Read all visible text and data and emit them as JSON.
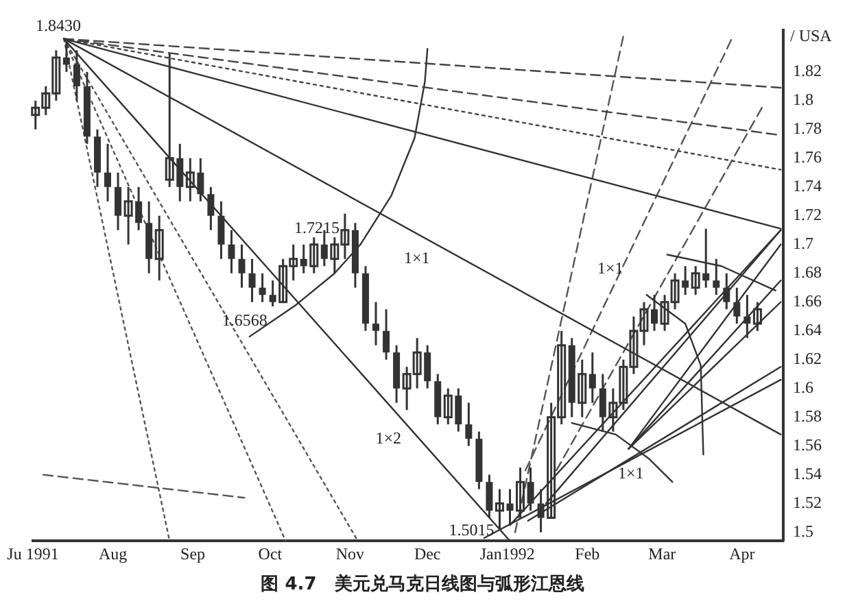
{
  "chart_data": {
    "type": "candlestick",
    "title": "图 4.7　美元兑马克日线图与弧形江恩线",
    "ylabel": "/ USA",
    "color": "#333333",
    "x": [
      "1991-07-02",
      "1991-07-06",
      "1991-07-10",
      "1991-07-14",
      "1991-07-18",
      "1991-07-22",
      "1991-07-26",
      "1991-07-30",
      "1991-08-03",
      "1991-08-07",
      "1991-08-11",
      "1991-08-15",
      "1991-08-19",
      "1991-08-23",
      "1991-08-27",
      "1991-08-31",
      "1991-09-04",
      "1991-09-08",
      "1991-09-12",
      "1991-09-16",
      "1991-09-20",
      "1991-09-24",
      "1991-09-28",
      "1991-10-02",
      "1991-10-06",
      "1991-10-10",
      "1991-10-14",
      "1991-10-18",
      "1991-10-22",
      "1991-10-26",
      "1991-10-30",
      "1991-11-03",
      "1991-11-07",
      "1991-11-11",
      "1991-11-15",
      "1991-11-19",
      "1991-11-23",
      "1991-11-27",
      "1991-12-01",
      "1991-12-05",
      "1991-12-09",
      "1991-12-13",
      "1991-12-17",
      "1991-12-21",
      "1991-12-25",
      "1991-12-29",
      "1992-01-02",
      "1992-01-06",
      "1992-01-10",
      "1992-01-14",
      "1992-01-18",
      "1992-01-22",
      "1992-01-26",
      "1992-01-30",
      "1992-02-03",
      "1992-02-07",
      "1992-02-11",
      "1992-02-15",
      "1992-02-19",
      "1992-02-23",
      "1992-02-27",
      "1992-03-02",
      "1992-03-06",
      "1992-03-10",
      "1992-03-14",
      "1992-03-18",
      "1992-03-22",
      "1992-03-26",
      "1992-03-30",
      "1992-04-03",
      "1992-04-07"
    ],
    "ohlc": [
      [
        1.79,
        1.8,
        1.78,
        1.795
      ],
      [
        1.795,
        1.81,
        1.79,
        1.805
      ],
      [
        1.805,
        1.835,
        1.8,
        1.83
      ],
      [
        1.83,
        1.843,
        1.82,
        1.825
      ],
      [
        1.825,
        1.835,
        1.8,
        1.81
      ],
      [
        1.81,
        1.82,
        1.77,
        1.775
      ],
      [
        1.775,
        1.78,
        1.74,
        1.75
      ],
      [
        1.75,
        1.77,
        1.73,
        1.74
      ],
      [
        1.74,
        1.75,
        1.71,
        1.72
      ],
      [
        1.72,
        1.74,
        1.7,
        1.73
      ],
      [
        1.73,
        1.74,
        1.71,
        1.715
      ],
      [
        1.715,
        1.73,
        1.68,
        1.69
      ],
      [
        1.69,
        1.72,
        1.675,
        1.71
      ],
      [
        1.745,
        1.833,
        1.74,
        1.76
      ],
      [
        1.76,
        1.77,
        1.73,
        1.74
      ],
      [
        1.74,
        1.76,
        1.73,
        1.75
      ],
      [
        1.75,
        1.76,
        1.73,
        1.735
      ],
      [
        1.735,
        1.74,
        1.71,
        1.72
      ],
      [
        1.72,
        1.73,
        1.69,
        1.7
      ],
      [
        1.7,
        1.71,
        1.68,
        1.69
      ],
      [
        1.69,
        1.7,
        1.67,
        1.68
      ],
      [
        1.68,
        1.69,
        1.66,
        1.67
      ],
      [
        1.67,
        1.68,
        1.66,
        1.665
      ],
      [
        1.665,
        1.675,
        1.657,
        1.66
      ],
      [
        1.66,
        1.69,
        1.66,
        1.685
      ],
      [
        1.685,
        1.7,
        1.675,
        1.69
      ],
      [
        1.69,
        1.7,
        1.68,
        1.685
      ],
      [
        1.685,
        1.705,
        1.68,
        1.7
      ],
      [
        1.7,
        1.71,
        1.685,
        1.69
      ],
      [
        1.69,
        1.705,
        1.68,
        1.7
      ],
      [
        1.7,
        1.7215,
        1.69,
        1.71
      ],
      [
        1.71,
        1.715,
        1.67,
        1.68
      ],
      [
        1.68,
        1.685,
        1.64,
        1.645
      ],
      [
        1.645,
        1.66,
        1.63,
        1.64
      ],
      [
        1.64,
        1.655,
        1.62,
        1.625
      ],
      [
        1.625,
        1.63,
        1.59,
        1.6
      ],
      [
        1.6,
        1.615,
        1.585,
        1.61
      ],
      [
        1.61,
        1.635,
        1.6,
        1.625
      ],
      [
        1.625,
        1.63,
        1.6,
        1.605
      ],
      [
        1.605,
        1.61,
        1.575,
        1.58
      ],
      [
        1.58,
        1.6,
        1.575,
        1.595
      ],
      [
        1.595,
        1.6,
        1.57,
        1.575
      ],
      [
        1.575,
        1.59,
        1.56,
        1.565
      ],
      [
        1.565,
        1.57,
        1.53,
        1.535
      ],
      [
        1.535,
        1.54,
        1.51,
        1.515
      ],
      [
        1.515,
        1.53,
        1.5015,
        1.52
      ],
      [
        1.52,
        1.53,
        1.505,
        1.515
      ],
      [
        1.515,
        1.545,
        1.51,
        1.535
      ],
      [
        1.535,
        1.545,
        1.515,
        1.52
      ],
      [
        1.52,
        1.53,
        1.5,
        1.51
      ],
      [
        1.51,
        1.59,
        1.51,
        1.58
      ],
      [
        1.58,
        1.64,
        1.575,
        1.63
      ],
      [
        1.63,
        1.635,
        1.58,
        1.59
      ],
      [
        1.59,
        1.62,
        1.58,
        1.61
      ],
      [
        1.61,
        1.625,
        1.59,
        1.6
      ],
      [
        1.6,
        1.61,
        1.57,
        1.58
      ],
      [
        1.58,
        1.6,
        1.57,
        1.59
      ],
      [
        1.59,
        1.62,
        1.585,
        1.615
      ],
      [
        1.615,
        1.65,
        1.61,
        1.64
      ],
      [
        1.64,
        1.66,
        1.63,
        1.655
      ],
      [
        1.655,
        1.665,
        1.64,
        1.645
      ],
      [
        1.645,
        1.665,
        1.64,
        1.66
      ],
      [
        1.66,
        1.68,
        1.655,
        1.675
      ],
      [
        1.675,
        1.685,
        1.665,
        1.67
      ],
      [
        1.67,
        1.685,
        1.665,
        1.68
      ],
      [
        1.68,
        1.711,
        1.67,
        1.675
      ],
      [
        1.675,
        1.69,
        1.665,
        1.67
      ],
      [
        1.67,
        1.68,
        1.655,
        1.66
      ],
      [
        1.66,
        1.67,
        1.645,
        1.65
      ],
      [
        1.65,
        1.665,
        1.635,
        1.645
      ],
      [
        1.645,
        1.66,
        1.64,
        1.655
      ]
    ],
    "series": [
      {
        "type": "line",
        "color": "#333333",
        "line_style": "solid",
        "x": [
          "1991-07-13",
          "1992-04-16"
        ],
        "values": [
          1.843,
          1.568
        ]
      },
      {
        "type": "line",
        "color": "#333333",
        "line_style": "solid",
        "x": [
          "1991-07-13",
          "1992-04-16"
        ],
        "values": [
          1.843,
          1.711
        ]
      },
      {
        "type": "line",
        "color": "#333333",
        "line_style": "solid",
        "x": [
          "1991-07-13",
          "1992-01-02"
        ],
        "values": [
          1.843,
          1.494
        ]
      },
      {
        "type": "line",
        "color": "#444444",
        "line_style": "dashed",
        "x": [
          "1991-07-13",
          "1992-04-16"
        ],
        "values": [
          1.843,
          1.809
        ]
      },
      {
        "type": "line",
        "color": "#444444",
        "line_style": "dashed",
        "x": [
          "1991-07-13",
          "1992-04-16"
        ],
        "values": [
          1.843,
          1.776
        ]
      },
      {
        "type": "line",
        "color": "#444444",
        "line_style": "dotted",
        "x": [
          "1991-07-13",
          "1992-04-16"
        ],
        "values": [
          1.843,
          1.752
        ]
      },
      {
        "type": "line",
        "color": "#555555",
        "line_style": "dotted",
        "x": [
          "1991-07-13",
          "1991-08-23"
        ],
        "values": [
          1.843,
          1.494
        ]
      },
      {
        "type": "line",
        "color": "#555555",
        "line_style": "dotted",
        "x": [
          "1991-07-13",
          "1991-10-07"
        ],
        "values": [
          1.843,
          1.494
        ]
      },
      {
        "type": "line",
        "color": "#555555",
        "line_style": "dotted",
        "x": [
          "1991-07-13",
          "1991-11-04"
        ],
        "values": [
          1.843,
          1.494
        ]
      },
      {
        "type": "line",
        "color": "#333333",
        "line_style": "solid",
        "x": [
          "1991-09-23",
          "1991-10-11",
          "1991-10-26",
          "1991-11-05",
          "1991-11-17",
          "1991-11-26",
          "1991-11-30",
          "1991-12-01"
        ],
        "values": [
          1.636,
          1.658,
          1.68,
          1.7,
          1.734,
          1.774,
          1.813,
          1.836
        ]
      },
      {
        "type": "line",
        "color": "#333333",
        "line_style": "solid",
        "x": [
          "1992-01-02",
          "1992-04-16"
        ],
        "values": [
          1.505,
          1.71
        ]
      },
      {
        "type": "line",
        "color": "#333333",
        "line_style": "solid",
        "x": [
          "1991-12-23",
          "1992-04-16"
        ],
        "values": [
          1.496,
          1.606
        ]
      },
      {
        "type": "line",
        "color": "#333333",
        "line_style": "solid",
        "x": [
          "1992-01-09",
          "1992-04-16"
        ],
        "values": [
          1.508,
          1.615
        ]
      },
      {
        "type": "line",
        "color": "#333333",
        "line_style": "solid",
        "x": [
          "1992-01-16",
          "1992-04-16"
        ],
        "values": [
          1.52,
          1.71
        ]
      },
      {
        "type": "line",
        "color": "#333333",
        "line_style": "solid",
        "x": [
          "1992-02-17",
          "1992-04-16"
        ],
        "values": [
          1.558,
          1.7
        ]
      },
      {
        "type": "line",
        "color": "#333333",
        "line_style": "solid",
        "x": [
          "1992-02-17",
          "1992-04-16"
        ],
        "values": [
          1.558,
          1.675
        ]
      },
      {
        "type": "line",
        "color": "#333333",
        "line_style": "solid",
        "x": [
          "1992-02-17",
          "1992-04-16"
        ],
        "values": [
          1.558,
          1.66
        ]
      },
      {
        "type": "line",
        "color": "#333333",
        "line_style": "solid",
        "x": [
          "1992-01-26",
          "1992-02-12",
          "1992-02-25",
          "1992-03-05"
        ],
        "values": [
          1.576,
          1.568,
          1.551,
          1.535
        ]
      },
      {
        "type": "line",
        "color": "#333333",
        "line_style": "solid",
        "x": [
          "1992-02-24",
          "1992-03-10",
          "1992-03-16",
          "1992-03-17"
        ],
        "values": [
          1.665,
          1.645,
          1.616,
          1.554
        ]
      },
      {
        "type": "line",
        "color": "#333333",
        "line_style": "solid",
        "x": [
          "1992-03-03",
          "1992-03-24",
          "1992-04-14"
        ],
        "values": [
          1.693,
          1.685,
          1.668
        ]
      },
      {
        "type": "line",
        "color": "#555555",
        "line_style": "dashed",
        "x": [
          "1992-01-04",
          "1992-02-15"
        ],
        "values": [
          1.5,
          1.845
        ]
      },
      {
        "type": "line",
        "color": "#555555",
        "line_style": "dashed",
        "x": [
          "1992-01-08",
          "1992-03-28"
        ],
        "values": [
          1.543,
          1.843
        ]
      },
      {
        "type": "line",
        "color": "#555555",
        "line_style": "dashed",
        "x": [
          "1992-01-20",
          "1992-04-09"
        ],
        "values": [
          1.543,
          1.796
        ]
      },
      {
        "type": "line",
        "color": "#555555",
        "line_style": "dashed",
        "x": [
          "1991-07-05",
          "1991-09-21"
        ],
        "values": [
          1.54,
          1.524
        ]
      }
    ],
    "marker": "none",
    "xlim": [
      "1991-07-01",
      "1992-04-17"
    ],
    "xticks": [
      {
        "value": "1991-07-01",
        "label": "Ju 1991"
      },
      {
        "value": "1991-08-01",
        "label": "Aug"
      },
      {
        "value": "1991-09-01",
        "label": "Sep"
      },
      {
        "value": "1991-10-01",
        "label": "Oct"
      },
      {
        "value": "1991-11-01",
        "label": "Nov"
      },
      {
        "value": "1991-12-01",
        "label": "Dec"
      },
      {
        "value": "1992-01-01",
        "label": "Jan1992"
      },
      {
        "value": "1992-02-01",
        "label": "Feb"
      },
      {
        "value": "1992-03-01",
        "label": "Mar"
      },
      {
        "value": "1992-04-01",
        "label": "Apr"
      }
    ],
    "ylim": [
      1.494,
      1.849
    ],
    "yticks": [
      1.5,
      1.52,
      1.54,
      1.56,
      1.58,
      1.6,
      1.62,
      1.64,
      1.66,
      1.68,
      1.7,
      1.72,
      1.74,
      1.76,
      1.78,
      1.8,
      1.82
    ],
    "grid": false,
    "legend": false,
    "annotations": [
      {
        "text": "1.8430",
        "x": "1991-07-13",
        "y": 1.843
      },
      {
        "text": "1.7215",
        "x": "1991-10-30",
        "y": 1.7215
      },
      {
        "text": "1.6568",
        "x": "1991-10-02",
        "y": 1.657
      },
      {
        "text": "1.5015",
        "x": "1991-12-29",
        "y": 1.5015
      },
      {
        "text": "1×1",
        "x": "1991-12-04",
        "y": 1.7006
      },
      {
        "text": "1×1",
        "x": "1992-02-17",
        "y": 1.693
      },
      {
        "text": "1×1",
        "x": "1992-02-25",
        "y": 1.551
      },
      {
        "text": "1×2",
        "x": "1991-11-23",
        "y": 1.575
      }
    ]
  }
}
